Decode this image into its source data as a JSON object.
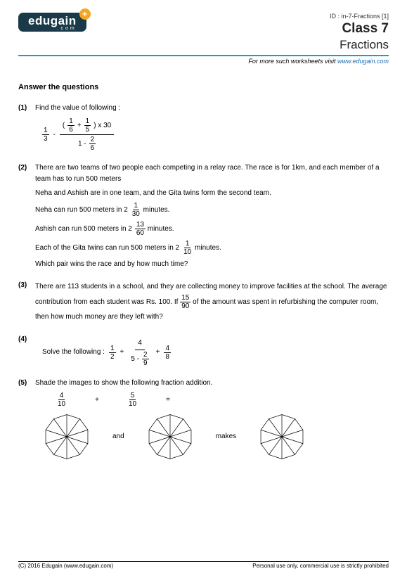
{
  "header": {
    "logo_main": "edugain",
    "logo_sub": ".com",
    "logo_plus": "+",
    "id_line": "ID : in-7-Fractions [1]",
    "class_line": "Class 7",
    "topic_line": "Fractions",
    "visit_prefix": "For more such worksheets visit ",
    "visit_link": "www.edugain.com"
  },
  "section_title": "Answer the questions",
  "q1": {
    "num": "(1)",
    "text": "Find the value of following :",
    "f1_num": "1",
    "f1_den": "3",
    "minus": "-",
    "top_open": "(",
    "top_close": ") x 30",
    "f2_num": "1",
    "f2_den": "6",
    "plus": "+",
    "f3_num": "1",
    "f3_den": "5",
    "bot_lead": "1 -",
    "f4_num": "2",
    "f4_den": "6"
  },
  "q2": {
    "num": "(2)",
    "p1": "There are two teams of two people each competing in a relay race. The race is for 1km, and each member of a team has to run 500 meters",
    "p2": "Neha and Ashish are in one team, and the Gita twins form the second team.",
    "neha_a": "Neha can run 500 meters in ",
    "neha_mix_whole": "2",
    "neha_mix_num": "1",
    "neha_mix_den": "30",
    "mins": " minutes.",
    "ashish_a": "Ashish can run 500 meters in ",
    "ashish_mix_whole": "2",
    "ashish_mix_num": "13",
    "ashish_mix_den": "60",
    "gita_a": "Each of the Gita twins can run 500 meters in ",
    "gita_mix_whole": "2",
    "gita_mix_num": "1",
    "gita_mix_den": "10",
    "p3": "Which pair wins the race and by how much time?"
  },
  "q3": {
    "num": "(3)",
    "a": "There are 113 students in a school, and they are collecting money to improve facilities at the school. The average contribution from each student was Rs. 100. If ",
    "f_num": "15",
    "f_den": "90",
    "b": " of the amount was spent in refurbishing the computer room, then how much money are they left with?"
  },
  "q4": {
    "num": "(4)",
    "lead": "Solve the following : ",
    "f1_num": "1",
    "f1_den": "2",
    "plus": "+",
    "top_num": "4",
    "bot_lead": "5 -",
    "fb_num": "2",
    "fb_den": "9",
    "f3_num": "4",
    "f3_den": "8"
  },
  "q5": {
    "num": "(5)",
    "text": "Shade the images to show the following fraction addition.",
    "f1_num": "4",
    "f1_den": "10",
    "plus": "+",
    "f2_num": "5",
    "f2_den": "10",
    "eq": "=",
    "and": "and",
    "makes": "makes",
    "decagon": {
      "stroke": "#000000",
      "fill": "#ffffff",
      "stroke_width": 1
    }
  },
  "footer": {
    "left": "(C) 2016 Edugain (www.edugain.com)",
    "right": "Personal use only, commercial use is strictly prohibited"
  }
}
